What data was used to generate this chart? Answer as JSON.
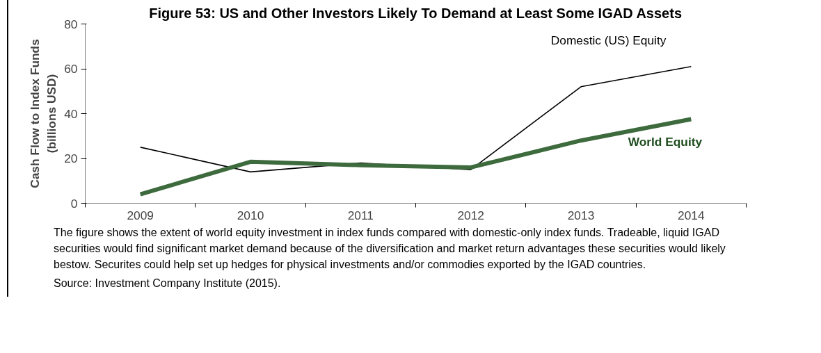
{
  "chart_data": {
    "type": "line",
    "title": "Figure 53: US and Other Investors Likely To Demand at Least Some IGAD Assets",
    "ylabel": "Cash Flow to Index Funds\n(billions USD)",
    "categories": [
      "2009",
      "2010",
      "2011",
      "2012",
      "2013",
      "2014"
    ],
    "series": [
      {
        "name": "Domestic (US) Equity",
        "color": "#000000",
        "values": [
          25,
          14,
          18,
          15,
          52,
          61
        ]
      },
      {
        "name": "World Equity",
        "color": "#3d6b3d",
        "values": [
          4,
          18.5,
          17,
          16,
          28,
          37.5
        ]
      }
    ],
    "ylim": [
      0,
      80
    ],
    "yticks": [
      0,
      20,
      40,
      60,
      80
    ],
    "grid": false,
    "marker": "none",
    "line_style": "solid",
    "annotations": [
      "The figure shows the extent of world equity investment in index funds compared with domestic-only index funds. Tradeable, liquid IGAD securities would find significant market demand because of the diversification and market return advantages these securities would likely bestow. Securites could help set up hedges for physical investments and/or commodies exported by the IGAD countries.",
      "Source: Investment Company Institute (2015)."
    ]
  }
}
